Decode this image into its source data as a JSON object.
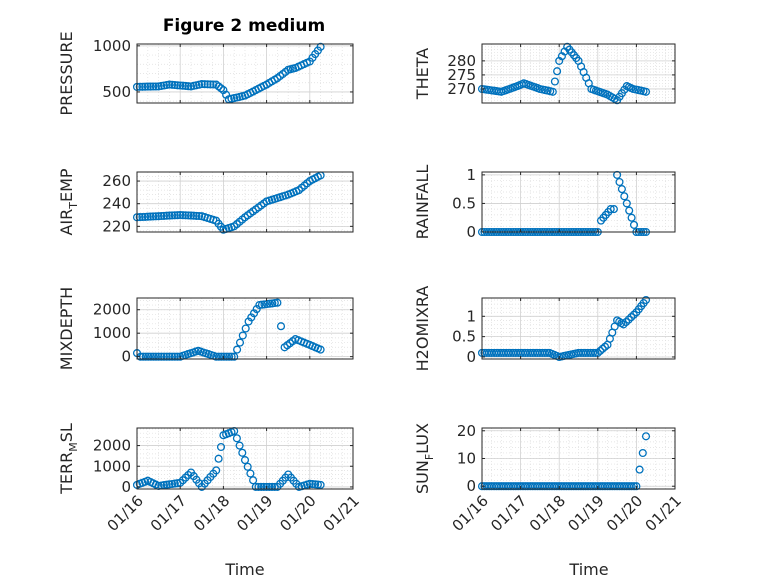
{
  "figure": {
    "title": "Figure 2 medium",
    "x_label": "Time",
    "marker_color": "#0072BD",
    "axis_color": "#262626",
    "grid_color": "#dedede"
  },
  "chart_data": [
    {
      "type": "scatter",
      "panel": "pressure",
      "ylabel": "PRESSURE",
      "ylim": [
        380,
        1020
      ],
      "yticks": [
        500,
        1000
      ],
      "xlim": [
        "01/16",
        "01/21"
      ],
      "xticks": [
        "01/16",
        "01/17",
        "01/18",
        "01/19",
        "01/20",
        "01/21"
      ],
      "grid": true,
      "x": [
        "2024-01-16T00:00",
        "2024-01-16T12:00",
        "2024-01-16T18:00",
        "2024-01-17T06:00",
        "2024-01-17T12:00",
        "2024-01-17T20:00",
        "2024-01-18T00:00",
        "2024-01-18T03:00",
        "2024-01-18T12:00",
        "2024-01-19T00:00",
        "2024-01-19T06:00",
        "2024-01-19T12:00",
        "2024-01-19T16:00",
        "2024-01-20T00:00",
        "2024-01-20T06:00"
      ],
      "y": [
        555,
        560,
        580,
        560,
        585,
        580,
        520,
        420,
        460,
        580,
        650,
        740,
        760,
        830,
        990
      ]
    },
    {
      "type": "scatter",
      "panel": "theta",
      "ylabel": "THETA",
      "ylim": [
        265,
        286
      ],
      "yticks": [
        270,
        275,
        280
      ],
      "xlim": [
        "01/16",
        "01/21"
      ],
      "xticks": [
        "01/16",
        "01/17",
        "01/18",
        "01/19",
        "01/20",
        "01/21"
      ],
      "grid": true,
      "x": [
        "2024-01-16T00:00",
        "2024-01-16T12:00",
        "2024-01-16T22:00",
        "2024-01-17T02:00",
        "2024-01-17T12:00",
        "2024-01-17T20:00",
        "2024-01-18T00:00",
        "2024-01-18T05:00",
        "2024-01-18T12:00",
        "2024-01-18T20:00",
        "2024-01-19T06:00",
        "2024-01-19T12:00",
        "2024-01-19T18:00",
        "2024-01-19T22:00",
        "2024-01-20T06:00"
      ],
      "y": [
        270,
        269,
        271,
        272,
        270,
        269,
        280,
        285,
        280,
        270,
        268,
        266,
        271,
        270,
        269
      ]
    },
    {
      "type": "scatter",
      "panel": "air_temp",
      "ylabel": "AIR",
      "ylabel_sub": "T",
      "ylabel_tail": "EMP",
      "ylim": [
        215,
        268
      ],
      "yticks": [
        220,
        240,
        260
      ],
      "xlim": [
        "01/16",
        "01/21"
      ],
      "xticks": [
        "01/16",
        "01/17",
        "01/18",
        "01/19",
        "01/20",
        "01/21"
      ],
      "grid": true,
      "x": [
        "2024-01-16T00:00",
        "2024-01-16T12:00",
        "2024-01-17T00:00",
        "2024-01-17T12:00",
        "2024-01-17T20:00",
        "2024-01-18T00:00",
        "2024-01-18T06:00",
        "2024-01-18T12:00",
        "2024-01-19T00:00",
        "2024-01-19T12:00",
        "2024-01-19T18:00",
        "2024-01-20T00:00",
        "2024-01-20T06:00"
      ],
      "y": [
        228,
        229,
        230,
        229,
        225,
        217,
        220,
        228,
        242,
        248,
        252,
        260,
        265
      ]
    },
    {
      "type": "scatter",
      "panel": "rainfall",
      "ylabel": "RAINFALL",
      "ylim": [
        0,
        1.05
      ],
      "yticks": [
        0,
        0.5,
        1
      ],
      "xlim": [
        "01/16",
        "01/21"
      ],
      "xticks": [
        "01/16",
        "01/17",
        "01/18",
        "01/19",
        "01/20",
        "01/21"
      ],
      "grid": true,
      "x": [
        "2024-01-16T00:00",
        "2024-01-17T00:00",
        "2024-01-18T00:00",
        "2024-01-19T00:00",
        "2024-01-19T02:00",
        "2024-01-19T08:00",
        "2024-01-19T10:00",
        "2024-01-19T12:00",
        "2024-01-20T00:00",
        "2024-01-20T06:00"
      ],
      "y": [
        0,
        0,
        0,
        0,
        0.2,
        0.4,
        0.4,
        1.0,
        0,
        0
      ]
    },
    {
      "type": "scatter",
      "panel": "mixdepth",
      "ylabel": "MIXDEPTH",
      "ylim": [
        -100,
        2500
      ],
      "yticks": [
        0,
        1000,
        2000
      ],
      "xlim": [
        "01/16",
        "01/21"
      ],
      "xticks": [
        "01/16",
        "01/17",
        "01/18",
        "01/19",
        "01/20",
        "01/21"
      ],
      "grid": true,
      "x": [
        "2024-01-16T00:00",
        "2024-01-16T02:00",
        "2024-01-16T12:00",
        "2024-01-17T00:00",
        "2024-01-17T10:00",
        "2024-01-17T20:00",
        "2024-01-18T06:00",
        "2024-01-18T14:00",
        "2024-01-18T20:00",
        "2024-01-19T06:00",
        "2024-01-19T08:00",
        "2024-01-19T10:00",
        "2024-01-19T16:00",
        "2024-01-20T00:00",
        "2024-01-20T06:00"
      ],
      "y": [
        150,
        0,
        0,
        0,
        250,
        0,
        0,
        1500,
        2200,
        2300,
        1300,
        400,
        750,
        500,
        300
      ]
    },
    {
      "type": "scatter",
      "panel": "h2omixra",
      "ylabel": "H2OMIXRA",
      "ylim": [
        -0.05,
        1.45
      ],
      "yticks": [
        0,
        0.5,
        1
      ],
      "xlim": [
        "01/16",
        "01/21"
      ],
      "xticks": [
        "01/16",
        "01/17",
        "01/18",
        "01/19",
        "01/20",
        "01/21"
      ],
      "grid": true,
      "x": [
        "2024-01-16T00:00",
        "2024-01-17T00:00",
        "2024-01-17T18:00",
        "2024-01-18T00:00",
        "2024-01-18T12:00",
        "2024-01-19T00:00",
        "2024-01-19T06:00",
        "2024-01-19T12:00",
        "2024-01-19T16:00",
        "2024-01-20T00:00",
        "2024-01-20T06:00"
      ],
      "y": [
        0.1,
        0.1,
        0.1,
        0.0,
        0.1,
        0.1,
        0.3,
        0.9,
        0.8,
        1.1,
        1.4
      ]
    },
    {
      "type": "scatter",
      "panel": "terr_msl",
      "ylabel": "TERR",
      "ylabel_sub": "M",
      "ylabel_tail": "SL",
      "ylim": [
        -100,
        2850
      ],
      "yticks": [
        0,
        1000,
        2000
      ],
      "xlim": [
        "01/16",
        "01/21"
      ],
      "xticks": [
        "01/16",
        "01/17",
        "01/18",
        "01/19",
        "01/20",
        "01/21"
      ],
      "grid": true,
      "x": [
        "2024-01-16T00:00",
        "2024-01-16T06:00",
        "2024-01-16T12:00",
        "2024-01-17T00:00",
        "2024-01-17T06:00",
        "2024-01-17T12:00",
        "2024-01-17T20:00",
        "2024-01-18T00:00",
        "2024-01-18T06:00",
        "2024-01-18T12:00",
        "2024-01-18T18:00",
        "2024-01-19T06:00",
        "2024-01-19T12:00",
        "2024-01-19T18:00",
        "2024-01-20T00:00",
        "2024-01-20T06:00"
      ],
      "y": [
        100,
        300,
        50,
        200,
        700,
        0,
        800,
        2500,
        2700,
        1300,
        0,
        0,
        600,
        0,
        150,
        100
      ]
    },
    {
      "type": "scatter",
      "panel": "sun_flux",
      "ylabel": "SUN",
      "ylabel_sub": "F",
      "ylabel_tail": "LUX",
      "ylim": [
        -1,
        21
      ],
      "yticks": [
        0,
        10,
        20
      ],
      "xlim": [
        "01/16",
        "01/21"
      ],
      "xticks": [
        "01/16",
        "01/17",
        "01/18",
        "01/19",
        "01/20",
        "01/21"
      ],
      "grid": true,
      "x": [
        "2024-01-16T00:00",
        "2024-01-17T00:00",
        "2024-01-18T00:00",
        "2024-01-19T00:00",
        "2024-01-20T00:00",
        "2024-01-20T02:00",
        "2024-01-20T04:00",
        "2024-01-20T06:00"
      ],
      "y": [
        0,
        0,
        0,
        0,
        0,
        6,
        12,
        18
      ]
    }
  ]
}
